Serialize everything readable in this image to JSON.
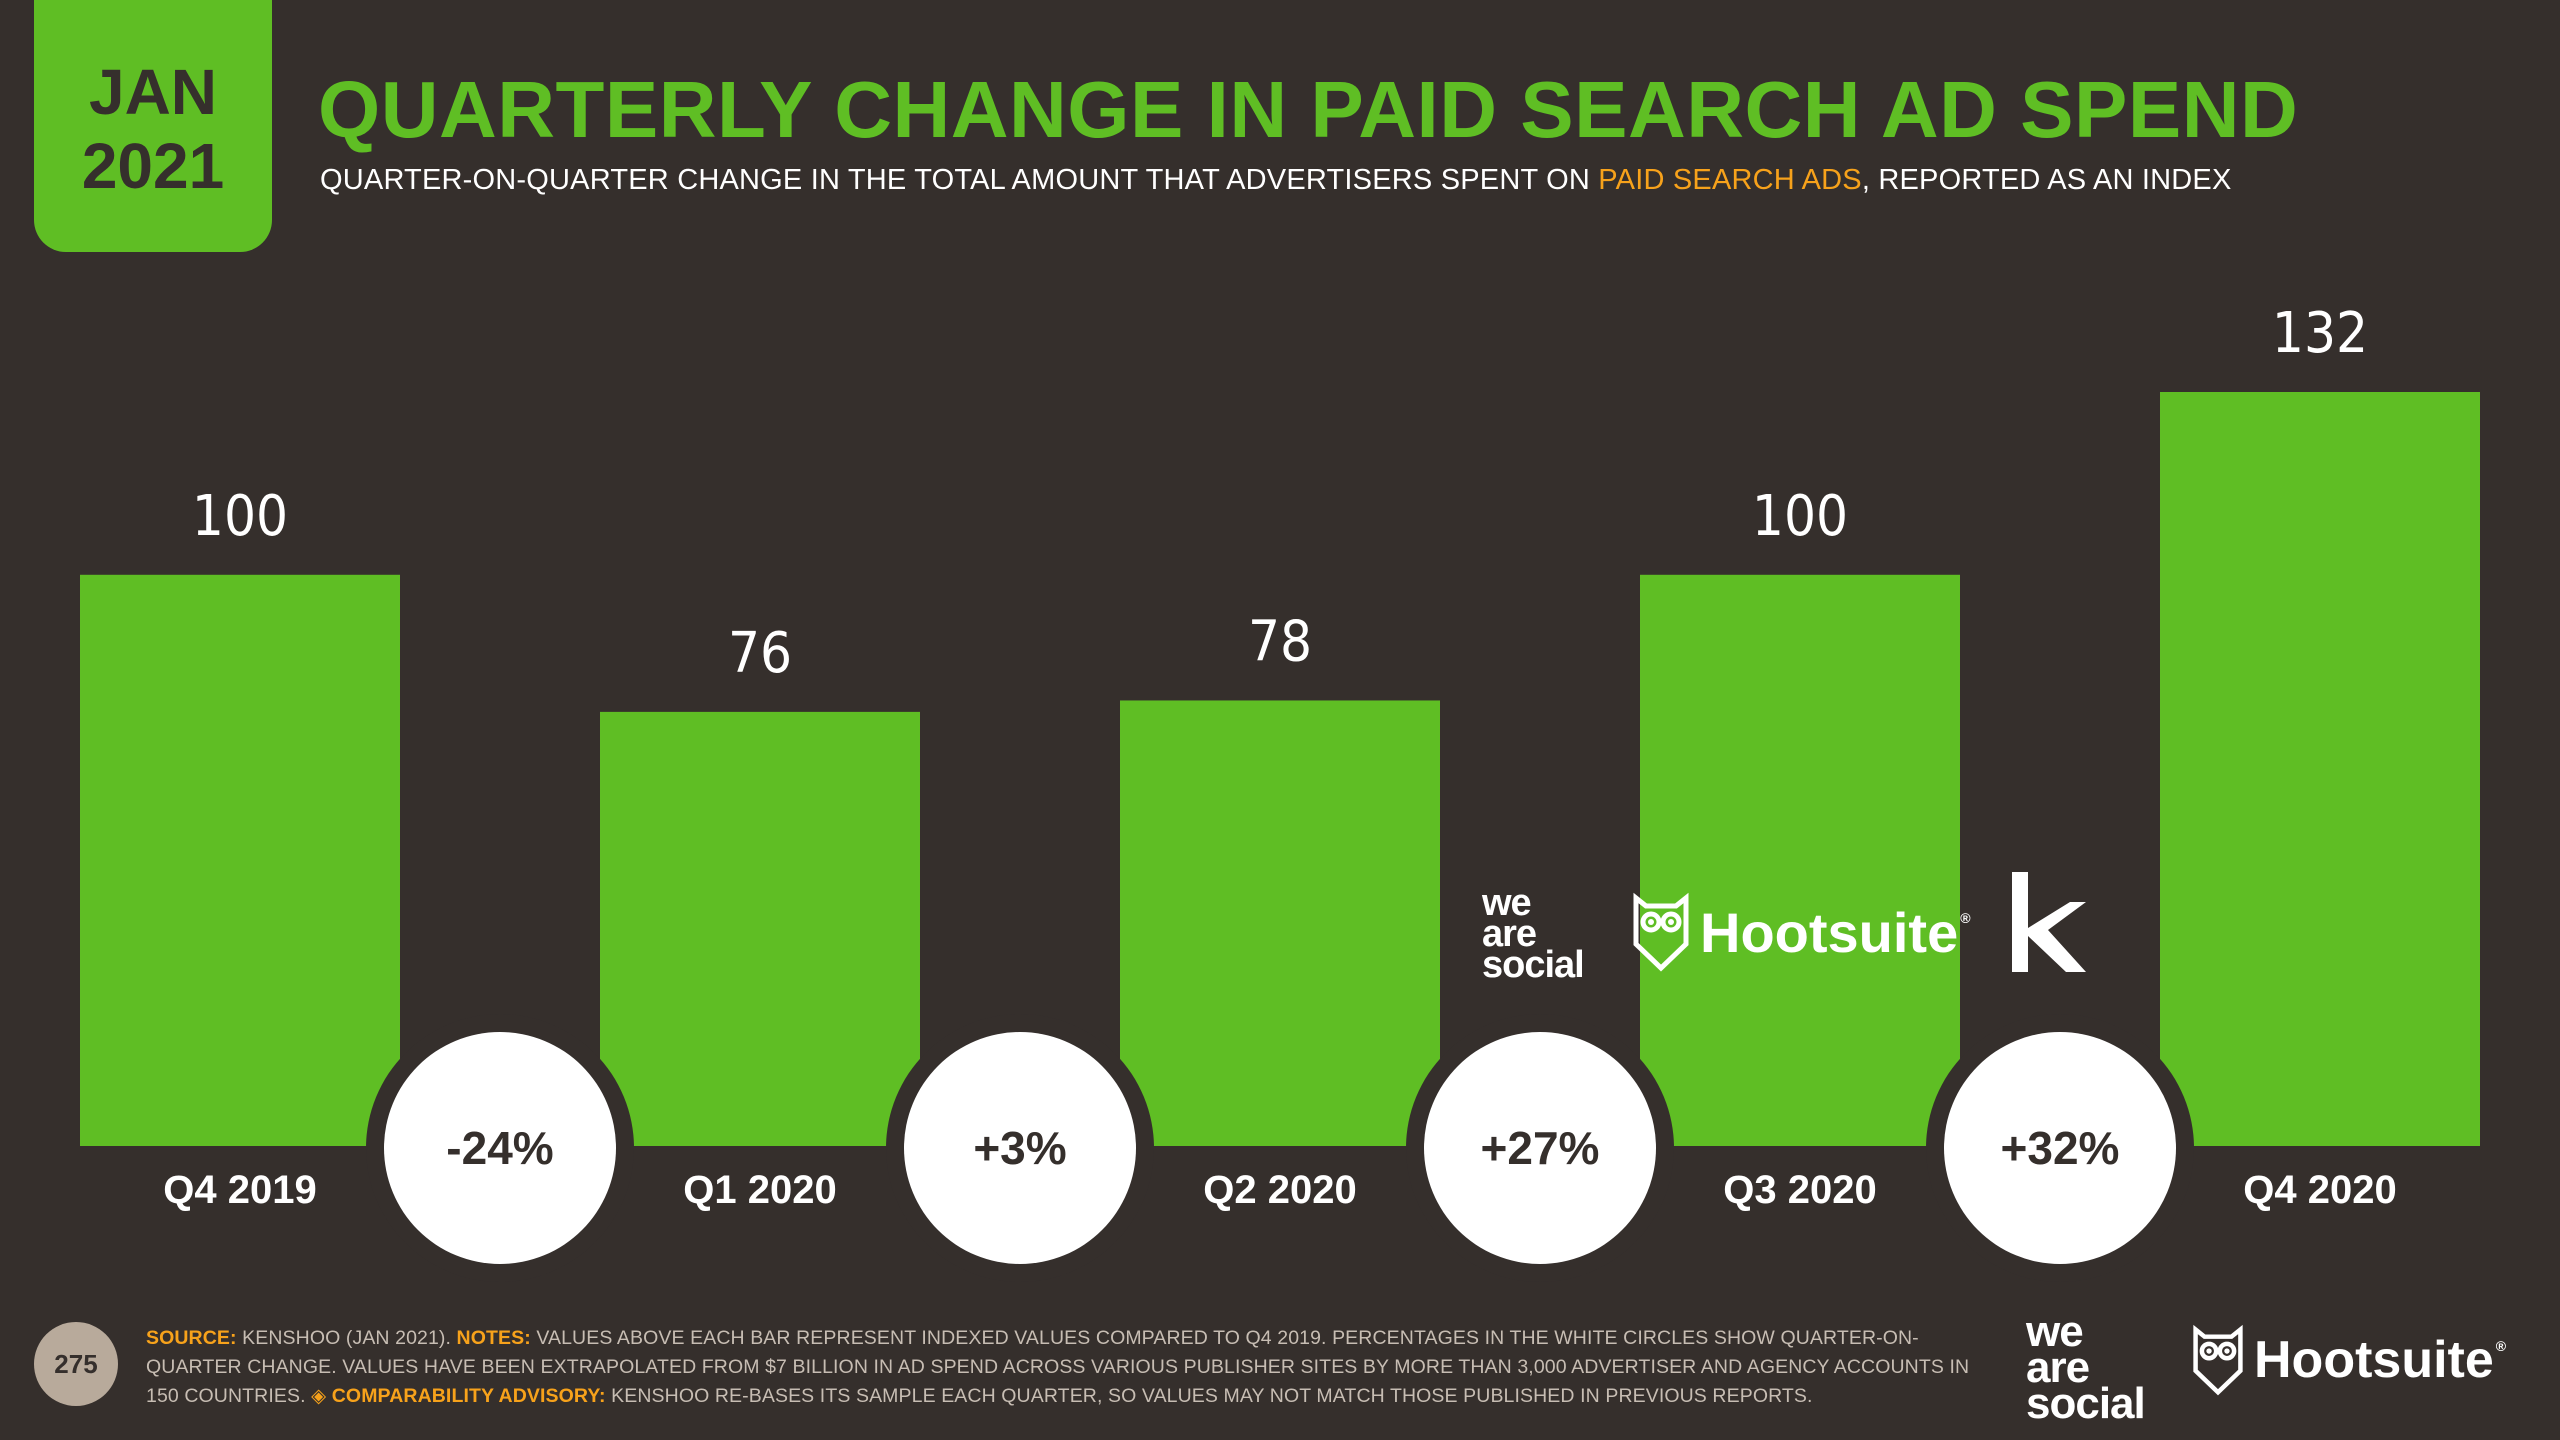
{
  "date_badge": {
    "month": "JAN",
    "year": "2021"
  },
  "title": "QUARTERLY CHANGE IN PAID SEARCH AD SPEND",
  "subtitle": {
    "before": "QUARTER-ON-QUARTER CHANGE IN THE TOTAL AMOUNT THAT ADVERTISERS SPENT ON ",
    "highlight": "PAID SEARCH ADS",
    "after": ", REPORTED AS AN INDEX"
  },
  "colors": {
    "background": "#352f2c",
    "accent_green": "#5fbe24",
    "accent_orange": "#f7a21b",
    "circle": "#ffffff"
  },
  "chart_data": {
    "type": "bar",
    "title": "QUARTERLY CHANGE IN PAID SEARCH AD SPEND",
    "categories": [
      "Q4 2019",
      "Q1 2020",
      "Q2 2020",
      "Q3 2020",
      "Q4 2020"
    ],
    "values": [
      100,
      76,
      78,
      100,
      132
    ],
    "value_labels": [
      "100",
      "76",
      "78",
      "100",
      "132"
    ],
    "changes": [
      "-24%",
      "+3%",
      "+27%",
      "+32%"
    ],
    "xlabel": "",
    "ylabel": "",
    "ylim": [
      0,
      132
    ]
  },
  "logos": {
    "wearesocial_lines": [
      "we",
      "are",
      "social"
    ],
    "hootsuite": "Hootsuite",
    "hootsuite_reg": "®",
    "kenshoo_letter": "k"
  },
  "footer": {
    "page_number": "275",
    "source_key": "SOURCE:",
    "source_text": " KENSHOO (JAN 2021). ",
    "notes_key": "NOTES:",
    "notes_text": " VALUES ABOVE EACH BAR REPRESENT INDEXED VALUES COMPARED TO Q4 2019. PERCENTAGES IN THE WHITE CIRCLES SHOW QUARTER-ON-QUARTER CHANGE. VALUES HAVE BEEN EXTRAPOLATED FROM $7 BILLION IN AD SPEND ACROSS VARIOUS PUBLISHER SITES BY MORE THAN 3,000 ADVERTISER AND AGENCY ACCOUNTS IN 150 COUNTRIES. ",
    "advisory_key": "◈ COMPARABILITY ADVISORY:",
    "advisory_text": " KENSHOO RE-BASES ITS SAMPLE EACH QUARTER, SO VALUES MAY NOT MATCH THOSE PUBLISHED IN PREVIOUS REPORTS."
  }
}
